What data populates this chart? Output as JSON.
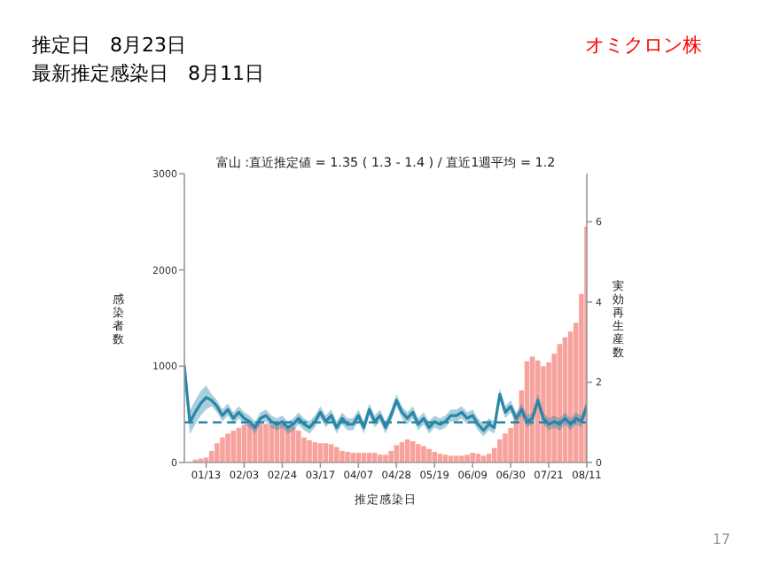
{
  "chart_data": {
    "type": "bar",
    "title": "富山 :直近推定値 = 1.35 ( 1.3 - 1.4 ) / 直近1週平均 = 1.2",
    "xlabel": "推定感染日",
    "ylabel": "感染者数",
    "y2label": "実効再生産数",
    "annotations": [
      "推定日　8月23日",
      "最新推定感染日　8月11日",
      "オミクロン株",
      "17"
    ],
    "xlim": [
      "--01-01",
      "--08-11"
    ],
    "xticks": [
      {
        "value": "--01-13",
        "label": "01/13"
      },
      {
        "value": "--02-03",
        "label": "02/03"
      },
      {
        "value": "--02-24",
        "label": "02/24"
      },
      {
        "value": "--03-17",
        "label": "03/17"
      },
      {
        "value": "--04-07",
        "label": "04/07"
      },
      {
        "value": "--04-28",
        "label": "04/28"
      },
      {
        "value": "--05-19",
        "label": "05/19"
      },
      {
        "value": "--06-09",
        "label": "06/09"
      },
      {
        "value": "--06-30",
        "label": "06/30"
      },
      {
        "value": "--07-21",
        "label": "07/21"
      },
      {
        "value": "--08-11",
        "label": "08/11"
      }
    ],
    "ylim": [
      0,
      3000
    ],
    "yticks": [
      0,
      1000,
      2000,
      3000
    ],
    "y2lim": [
      0,
      7.2
    ],
    "y2ticks": [
      0,
      2,
      4,
      6
    ],
    "x": [
      "--01-01",
      "--01-04",
      "--01-07",
      "--01-10",
      "--01-13",
      "--01-16",
      "--01-19",
      "--01-22",
      "--01-25",
      "--01-28",
      "--01-31",
      "--02-03",
      "--02-06",
      "--02-09",
      "--02-12",
      "--02-15",
      "--02-18",
      "--02-21",
      "--02-24",
      "--02-27",
      "--03-02",
      "--03-05",
      "--03-08",
      "--03-11",
      "--03-14",
      "--03-17",
      "--03-20",
      "--03-23",
      "--03-26",
      "--03-29",
      "--04-01",
      "--04-04",
      "--04-07",
      "--04-10",
      "--04-13",
      "--04-16",
      "--04-19",
      "--04-22",
      "--04-25",
      "--04-28",
      "--05-01",
      "--05-04",
      "--05-07",
      "--05-10",
      "--05-13",
      "--05-16",
      "--05-19",
      "--05-22",
      "--05-25",
      "--05-28",
      "--05-31",
      "--06-03",
      "--06-06",
      "--06-09",
      "--06-12",
      "--06-15",
      "--06-18",
      "--06-21",
      "--06-24",
      "--06-27",
      "--06-30",
      "--07-03",
      "--07-06",
      "--07-09",
      "--07-12",
      "--07-15",
      "--07-18",
      "--07-21",
      "--07-24",
      "--07-27",
      "--07-30",
      "--08-02",
      "--08-05",
      "--08-08",
      "--08-11"
    ],
    "series": [
      {
        "color": "#f7a29d",
        "values": [
          null,
          null,
          30,
          40,
          50,
          120,
          200,
          260,
          300,
          330,
          360,
          390,
          400,
          400,
          400,
          400,
          390,
          400,
          400,
          380,
          370,
          330,
          260,
          230,
          210,
          200,
          200,
          190,
          160,
          120,
          110,
          100,
          100,
          100,
          100,
          100,
          80,
          80,
          120,
          180,
          210,
          240,
          220,
          190,
          170,
          140,
          110,
          90,
          80,
          70,
          70,
          70,
          80,
          100,
          90,
          70,
          90,
          150,
          240,
          300,
          360,
          480,
          750,
          1050,
          1100,
          1060,
          1000,
          1040,
          1130,
          1230,
          1300,
          1360,
          1450,
          1750,
          2450
        ]
      },
      {
        "type": "line",
        "axis": "y2",
        "color": "#2a86a8",
        "values": [
          2.4,
          1.0,
          1.25,
          1.47,
          1.62,
          1.55,
          1.4,
          1.17,
          1.32,
          1.1,
          1.25,
          1.1,
          1.02,
          0.87,
          1.1,
          1.17,
          1.02,
          0.95,
          1.02,
          0.87,
          0.95,
          1.1,
          0.95,
          0.87,
          1.02,
          1.25,
          1.02,
          1.17,
          0.87,
          1.1,
          0.95,
          0.95,
          1.17,
          0.87,
          1.32,
          1.02,
          1.17,
          0.87,
          1.17,
          1.55,
          1.25,
          1.1,
          1.25,
          0.95,
          1.1,
          0.87,
          1.02,
          0.95,
          1.02,
          1.17,
          1.17,
          1.25,
          1.1,
          1.17,
          0.95,
          0.8,
          0.95,
          0.87,
          1.7,
          1.25,
          1.4,
          1.1,
          1.32,
          1.02,
          1.1,
          1.55,
          1.1,
          0.95,
          1.02,
          0.95,
          1.1,
          0.95,
          1.1,
          1.02,
          1.4
        ],
        "lower": [
          2.1,
          0.7,
          0.95,
          1.17,
          1.32,
          1.4,
          1.25,
          1.02,
          1.17,
          0.95,
          1.1,
          0.95,
          0.87,
          0.72,
          0.95,
          1.02,
          0.87,
          0.8,
          0.87,
          0.72,
          0.8,
          0.95,
          0.8,
          0.72,
          0.87,
          1.1,
          0.87,
          1.02,
          0.72,
          0.95,
          0.8,
          0.8,
          1.02,
          0.72,
          1.17,
          0.87,
          1.02,
          0.72,
          1.02,
          1.4,
          1.1,
          0.95,
          1.1,
          0.8,
          0.95,
          0.72,
          0.87,
          0.8,
          0.87,
          1.02,
          1.02,
          1.1,
          0.95,
          1.02,
          0.8,
          0.65,
          0.8,
          0.72,
          1.55,
          1.1,
          1.25,
          0.95,
          1.17,
          0.87,
          0.95,
          1.4,
          0.95,
          0.8,
          0.87,
          0.8,
          0.95,
          0.8,
          0.95,
          0.87,
          1.25
        ],
        "upper": [
          2.7,
          1.3,
          1.55,
          1.77,
          1.92,
          1.7,
          1.55,
          1.32,
          1.47,
          1.25,
          1.4,
          1.25,
          1.17,
          1.02,
          1.25,
          1.32,
          1.17,
          1.1,
          1.17,
          1.02,
          1.1,
          1.25,
          1.1,
          1.02,
          1.17,
          1.4,
          1.17,
          1.32,
          1.02,
          1.25,
          1.1,
          1.1,
          1.32,
          1.02,
          1.47,
          1.17,
          1.32,
          1.02,
          1.32,
          1.7,
          1.4,
          1.25,
          1.4,
          1.1,
          1.25,
          1.02,
          1.17,
          1.1,
          1.17,
          1.32,
          1.32,
          1.4,
          1.25,
          1.32,
          1.1,
          0.95,
          1.1,
          1.02,
          1.85,
          1.4,
          1.55,
          1.25,
          1.47,
          1.17,
          1.25,
          1.7,
          1.25,
          1.1,
          1.17,
          1.1,
          1.25,
          1.1,
          1.25,
          1.17,
          1.55
        ]
      }
    ],
    "ref_lines": [
      {
        "axis": "y2",
        "value": 1,
        "color": "#2a86a8",
        "line_style": "dashed"
      }
    ]
  }
}
